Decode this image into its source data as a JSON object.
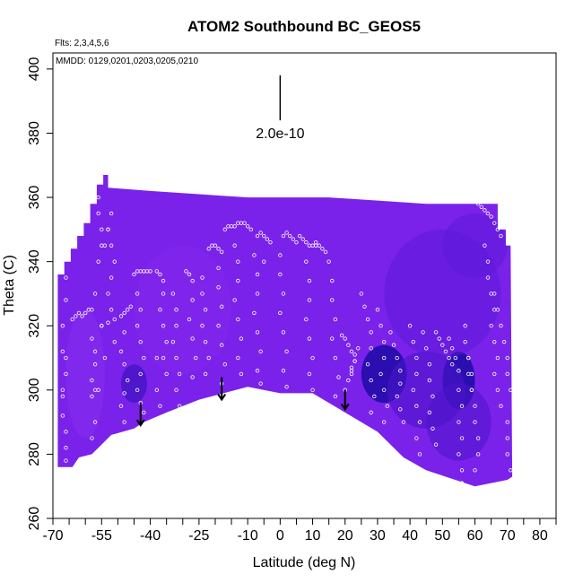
{
  "chart_data": {
    "type": "scatter",
    "title": "ATOM2 Southbound BC_GEOS5",
    "flights_label": "Flts: 2,3,4,5,6",
    "dates_label": "MMDD: 0129,0201,0203,0205,0210",
    "xlabel": "Latitude (deg N)",
    "ylabel": "Theta (C)",
    "xlim": [
      -70,
      85
    ],
    "ylim": [
      260,
      405
    ],
    "x_ticks": [
      -70,
      -55,
      -40,
      -25,
      -10,
      0,
      10,
      20,
      30,
      40,
      50,
      60,
      70,
      80
    ],
    "x_tick_labels": [
      "-70",
      "-55",
      "-40",
      "-25",
      "-10",
      "0",
      "10",
      "20",
      "30",
      "40",
      "50",
      "60",
      "70",
      "80"
    ],
    "x_minor_ticks": [
      -65,
      -60,
      -50,
      -45,
      -35,
      -30,
      -20,
      -15,
      -5,
      5,
      15,
      25,
      35,
      45,
      55,
      65,
      75,
      85
    ],
    "y_ticks": [
      260,
      280,
      300,
      320,
      340,
      360,
      380,
      400
    ],
    "y_tick_labels": [
      "260",
      "280",
      "300",
      "320",
      "340",
      "360",
      "380",
      "400"
    ],
    "scale_bar": {
      "label": "2.0e-10",
      "x": 0,
      "y_top": 398,
      "y_bottom": 384
    },
    "colors": {
      "field_base": "#7a22ea",
      "field_light": "#8a30f2",
      "field_dark": "#4a14c8",
      "field_darkest": "#1a0aa0",
      "points": "#ffffff",
      "arrows": "#000000"
    },
    "profile_arrows": [
      {
        "x": -43,
        "y_from": 296,
        "y_to": 289
      },
      {
        "x": -18,
        "y_from": 304,
        "y_to": 297
      },
      {
        "x": 20,
        "y_from": 300,
        "y_to": 294
      }
    ],
    "field_outline": [
      [
        -68.5,
        276
      ],
      [
        -68.5,
        336
      ],
      [
        -66.5,
        336
      ],
      [
        -66.5,
        340
      ],
      [
        -64.5,
        340
      ],
      [
        -64.5,
        344
      ],
      [
        -62.5,
        344
      ],
      [
        -62.5,
        348
      ],
      [
        -60.5,
        348
      ],
      [
        -60.5,
        352
      ],
      [
        -58.5,
        352
      ],
      [
        -58.5,
        358
      ],
      [
        -56.5,
        358
      ],
      [
        -56.5,
        364
      ],
      [
        -54.5,
        364
      ],
      [
        -54.5,
        367
      ],
      [
        -53.0,
        367
      ],
      [
        -53.0,
        363
      ],
      [
        -40,
        362
      ],
      [
        -25,
        361
      ],
      [
        -10,
        360
      ],
      [
        0,
        360
      ],
      [
        15,
        360
      ],
      [
        30,
        359
      ],
      [
        45,
        358
      ],
      [
        60,
        358
      ],
      [
        67,
        358
      ],
      [
        67,
        350
      ],
      [
        69.5,
        350
      ],
      [
        69.5,
        345
      ],
      [
        71,
        345
      ],
      [
        71.5,
        273
      ],
      [
        70,
        272
      ],
      [
        60,
        270
      ],
      [
        45,
        275
      ],
      [
        38,
        279
      ],
      [
        30,
        287
      ],
      [
        20,
        293
      ],
      [
        10,
        299
      ],
      [
        0,
        299
      ],
      [
        -10,
        301
      ],
      [
        -25,
        297
      ],
      [
        -35,
        293
      ],
      [
        -42,
        290
      ],
      [
        -45,
        288
      ],
      [
        -52,
        286
      ],
      [
        -56,
        282
      ],
      [
        -58,
        280
      ],
      [
        -62,
        279
      ],
      [
        -64,
        276
      ]
    ],
    "field_blobs": [
      {
        "x": 32,
        "y": 305,
        "rx": 7,
        "ry": 9,
        "color": "#1c0aa4",
        "opacity": 0.85
      },
      {
        "x": 55,
        "y": 303,
        "rx": 5,
        "ry": 9,
        "color": "#1c0aa4",
        "opacity": 0.85
      },
      {
        "x": 45,
        "y": 300,
        "rx": 12,
        "ry": 12,
        "color": "#4a14c8",
        "opacity": 0.6
      },
      {
        "x": 55,
        "y": 290,
        "rx": 10,
        "ry": 12,
        "color": "#4a14c8",
        "opacity": 0.55
      },
      {
        "x": 50,
        "y": 330,
        "rx": 18,
        "ry": 20,
        "color": "#5a18d8",
        "opacity": 0.5
      },
      {
        "x": -45,
        "y": 302,
        "rx": 4,
        "ry": 6,
        "color": "#3010b8",
        "opacity": 0.6
      },
      {
        "x": -60,
        "y": 305,
        "rx": 6,
        "ry": 20,
        "color": "#9034f4",
        "opacity": 0.35
      },
      {
        "x": -30,
        "y": 325,
        "rx": 15,
        "ry": 20,
        "color": "#8a2ef0",
        "opacity": 0.3
      },
      {
        "x": 60,
        "y": 345,
        "rx": 10,
        "ry": 10,
        "color": "#5a18d8",
        "opacity": 0.5
      }
    ],
    "profiles": [
      {
        "x": [
          -66,
          -66,
          -67,
          -67,
          -66,
          -67,
          -67,
          -66,
          -66,
          -66,
          -67,
          -66
        ],
        "y": [
          335,
          328,
          320,
          312,
          305,
          298,
          292,
          287,
          282,
          310,
          300,
          278
        ]
      },
      {
        "x": [
          -64,
          -63,
          -62,
          -61,
          -60,
          -59,
          -58
        ],
        "y": [
          322,
          323,
          324,
          323,
          324,
          325,
          325
        ]
      },
      {
        "x": [
          -57,
          -56,
          -56,
          -55,
          -55,
          -54,
          -53,
          -56,
          -57,
          -55,
          -54,
          -56
        ],
        "y": [
          364,
          360,
          355,
          350,
          345,
          345,
          350,
          340,
          330,
          320,
          310,
          300
        ]
      },
      {
        "x": [
          -58,
          -58,
          -57,
          -57,
          -58,
          -57,
          -57,
          -58
        ],
        "y": [
          298,
          303,
          308,
          312,
          316,
          300,
          290,
          285
        ]
      },
      {
        "x": [
          -55,
          -53,
          -51,
          -49,
          -48,
          -47,
          -46
        ],
        "y": [
          320,
          321,
          322,
          323,
          324,
          325,
          326
        ]
      },
      {
        "x": [
          -52,
          -53,
          -52,
          -51,
          -52,
          -53,
          -52,
          -51
        ],
        "y": [
          355,
          350,
          345,
          340,
          335,
          330,
          325,
          315
        ]
      },
      {
        "x": [
          -49,
          -48,
          -47,
          -48,
          -49,
          -48,
          -47,
          -48
        ],
        "y": [
          312,
          308,
          303,
          299,
          295,
          290,
          285,
          318
        ]
      },
      {
        "x": [
          -45,
          -44,
          -43,
          -42,
          -41,
          -40
        ],
        "y": [
          336,
          337,
          337,
          337,
          337,
          337
        ]
      },
      {
        "x": [
          -44,
          -43,
          -44,
          -43,
          -42,
          -43,
          -44,
          -43,
          -42
        ],
        "y": [
          330,
          325,
          320,
          315,
          310,
          305,
          300,
          296,
          293
        ]
      },
      {
        "x": [
          -38,
          -37,
          -36,
          -36,
          -37,
          -36,
          -35,
          -36,
          -35
        ],
        "y": [
          337,
          336,
          334,
          330,
          325,
          320,
          315,
          310,
          305
        ]
      },
      {
        "x": [
          -33,
          -32,
          -32,
          -33,
          -32,
          -31,
          -32,
          -31
        ],
        "y": [
          330,
          325,
          320,
          315,
          310,
          305,
          300,
          295
        ]
      },
      {
        "x": [
          -29,
          -28,
          -27,
          -27,
          -28,
          -27,
          -26,
          -27
        ],
        "y": [
          337,
          336,
          334,
          328,
          322,
          316,
          310,
          304
        ]
      },
      {
        "x": [
          -24,
          -24,
          -23,
          -24,
          -23,
          -22,
          -23
        ],
        "y": [
          335,
          330,
          325,
          320,
          315,
          310,
          305
        ]
      },
      {
        "x": [
          -22,
          -21,
          -20,
          -19,
          -18
        ],
        "y": [
          344,
          345,
          345,
          344,
          343
        ]
      },
      {
        "x": [
          -19,
          -19,
          -18,
          -19,
          -18,
          -17,
          -18
        ],
        "y": [
          338,
          332,
          326,
          320,
          314,
          308,
          302
        ]
      },
      {
        "x": [
          -17,
          -16,
          -15,
          -14,
          -13,
          -12,
          -11,
          -10,
          -9
        ],
        "y": [
          350,
          351,
          351,
          351,
          352,
          352,
          352,
          351,
          350
        ]
      },
      {
        "x": [
          -14,
          -13,
          -13,
          -14,
          -13,
          -12,
          -13,
          -12,
          -11
        ],
        "y": [
          345,
          340,
          334,
          328,
          322,
          316,
          310,
          305,
          300
        ]
      },
      {
        "x": [
          -7,
          -6,
          -5,
          -4,
          -3
        ],
        "y": [
          348,
          349,
          348,
          347,
          346
        ]
      },
      {
        "x": [
          -8,
          -7,
          -7,
          -8,
          -7,
          -6,
          -7,
          -6,
          -5
        ],
        "y": [
          342,
          336,
          330,
          324,
          318,
          312,
          306,
          302,
          340
        ]
      },
      {
        "x": [
          1,
          2,
          3,
          4,
          5
        ],
        "y": [
          348,
          349,
          348,
          347,
          346
        ]
      },
      {
        "x": [
          0,
          0,
          1,
          0,
          1,
          2,
          1,
          2
        ],
        "y": [
          342,
          336,
          330,
          324,
          318,
          312,
          306,
          301
        ]
      },
      {
        "x": [
          6,
          7,
          8,
          9
        ],
        "y": [
          348,
          347,
          346,
          345
        ]
      },
      {
        "x": [
          10,
          11,
          12,
          13,
          14
        ],
        "y": [
          345,
          346,
          345,
          344,
          343
        ]
      },
      {
        "x": [
          8,
          9,
          9,
          8,
          9,
          10,
          9,
          10,
          11
        ],
        "y": [
          340,
          334,
          328,
          322,
          316,
          310,
          305,
          300,
          345
        ]
      },
      {
        "x": [
          15,
          16,
          16,
          17,
          16,
          17,
          18,
          17
        ],
        "y": [
          340,
          334,
          328,
          322,
          316,
          310,
          304,
          298
        ]
      },
      {
        "x": [
          19,
          20,
          21,
          22,
          23,
          22,
          21,
          20
        ],
        "y": [
          317,
          316,
          314,
          312,
          309,
          306,
          303,
          300
        ]
      },
      {
        "x": [
          25,
          26,
          27,
          28,
          28,
          27,
          28,
          29,
          28
        ],
        "y": [
          330,
          326,
          322,
          318,
          313,
          308,
          303,
          298,
          293
        ]
      },
      {
        "x": [
          30,
          31,
          32,
          32,
          31,
          32,
          33,
          32
        ],
        "y": [
          325,
          320,
          315,
          310,
          305,
          300,
          295,
          290
        ]
      },
      {
        "x": [
          34,
          35,
          36,
          37,
          37,
          36,
          37,
          38
        ],
        "y": [
          318,
          314,
          310,
          306,
          302,
          298,
          294,
          290
        ]
      },
      {
        "x": [
          40,
          41,
          42,
          42,
          41,
          42,
          43,
          42,
          43
        ],
        "y": [
          320,
          315,
          310,
          305,
          300,
          295,
          290,
          285,
          280
        ]
      },
      {
        "x": [
          44,
          45,
          46,
          46,
          47,
          46,
          47,
          48
        ],
        "y": [
          318,
          313,
          308,
          303,
          298,
          293,
          288,
          283
        ]
      },
      {
        "x": [
          48,
          49,
          50,
          51,
          52,
          53
        ],
        "y": [
          318,
          316,
          314,
          312,
          310,
          308
        ]
      },
      {
        "x": [
          52,
          53,
          54,
          55,
          55,
          56,
          55,
          56,
          55,
          56,
          56
        ],
        "y": [
          316,
          313,
          310,
          306,
          300,
          295,
          290,
          285,
          280,
          275,
          271
        ]
      },
      {
        "x": [
          58,
          59,
          59,
          60,
          60,
          61,
          61,
          60
        ],
        "y": [
          310,
          305,
          300,
          295,
          290,
          285,
          280,
          275
        ]
      },
      {
        "x": [
          61,
          62,
          63,
          64,
          65,
          66,
          67,
          68
        ],
        "y": [
          358,
          357,
          356,
          355,
          354,
          352,
          350,
          348
        ]
      },
      {
        "x": [
          63,
          64,
          64,
          65,
          66,
          65,
          66,
          67,
          66,
          67,
          68
        ],
        "y": [
          345,
          340,
          335,
          330,
          325,
          320,
          315,
          310,
          305,
          300,
          295
        ]
      },
      {
        "x": [
          66,
          67,
          68,
          69,
          70,
          70,
          71,
          70
        ],
        "y": [
          330,
          325,
          320,
          315,
          310,
          305,
          300,
          290
        ]
      },
      {
        "x": [
          22,
          22,
          23,
          23,
          24
        ],
        "y": [
          305,
          307,
          309,
          311,
          313
        ]
      },
      {
        "x": [
          70,
          70,
          71
        ],
        "y": [
          285,
          280,
          275
        ]
      },
      {
        "x": [
          -38,
          -38,
          -37,
          -36,
          -35
        ],
        "y": [
          310,
          300,
          295,
          290,
          288
        ]
      },
      {
        "x": [
          57,
          57,
          58,
          58,
          59
        ],
        "y": [
          320,
          315,
          310,
          305,
          300
        ]
      }
    ]
  }
}
